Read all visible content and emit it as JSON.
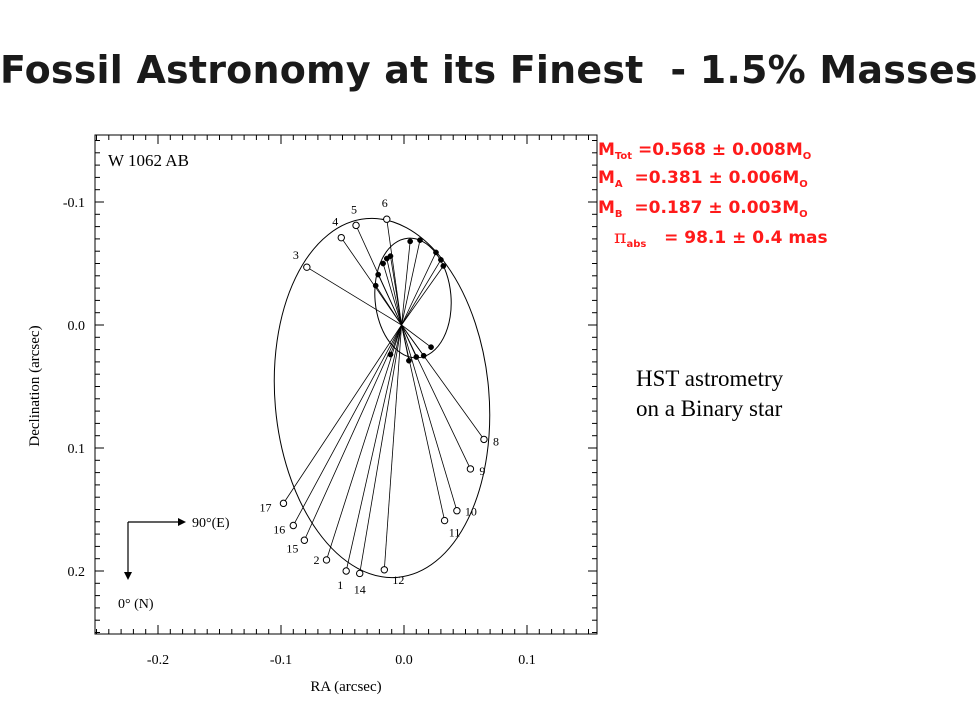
{
  "slide": {
    "title": "Fossil Astronomy at its Finest  - 1.5% Masses"
  },
  "results": {
    "m_tot_symbol": "M",
    "m_tot_sub": "Tot",
    "m_tot_value": " =0.568 ± 0.008M",
    "m_tot_unit_sub": "O",
    "m_a_symbol": "M",
    "m_a_sub": "A",
    "m_a_value": "  =0.381 ± 0.006M",
    "m_a_unit_sub": "O",
    "m_b_symbol": "M",
    "m_b_sub": "B",
    "m_b_value": "  =0.187 ± 0.003M",
    "m_b_unit_sub": "O",
    "pi_symbol": "π",
    "pi_sub": "abs",
    "pi_value": "   = 98.1 ± 0.4 mas"
  },
  "caption": {
    "line1": "HST astrometry",
    "line2": "on a Binary star"
  },
  "colors": {
    "annotation": "#ff1a1a",
    "ink": "#000000",
    "title": "#1a1a1a"
  },
  "chart_data": {
    "type": "scatter",
    "title": "W 1062 AB",
    "xlabel": "RA (arcsec)",
    "ylabel": "Declination (arcsec)",
    "xlim": [
      -0.25,
      0.15
    ],
    "ylim": [
      -0.15,
      0.25
    ],
    "y_inverted": true,
    "x_ticks": [
      -0.2,
      -0.1,
      0.0,
      0.1
    ],
    "x_tick_labels": [
      "-0.2",
      "-0.1",
      "0.0",
      "0.1"
    ],
    "y_ticks": [
      -0.1,
      0.0,
      0.1,
      0.2
    ],
    "y_tick_labels": [
      "-0.1",
      "0.0",
      "0.1",
      "0.2"
    ],
    "grid": false,
    "orbit_center_a": [
      -0.002,
      0.0
    ],
    "series": [
      {
        "marker": "open-circle",
        "points": [
          {
            "label": "1",
            "x": -0.047,
            "y": 0.2
          },
          {
            "label": "2",
            "x": -0.063,
            "y": 0.191
          },
          {
            "label": "3",
            "x": -0.079,
            "y": -0.047
          },
          {
            "label": "4",
            "x": -0.051,
            "y": -0.071
          },
          {
            "label": "5",
            "x": -0.039,
            "y": -0.081
          },
          {
            "label": "6",
            "x": -0.014,
            "y": -0.086
          },
          {
            "label": "8",
            "x": 0.065,
            "y": 0.093
          },
          {
            "label": "9",
            "x": 0.054,
            "y": 0.117
          },
          {
            "label": "10",
            "x": 0.043,
            "y": 0.151
          },
          {
            "label": "11",
            "x": 0.033,
            "y": 0.159
          },
          {
            "label": "12",
            "x": -0.016,
            "y": 0.199
          },
          {
            "label": "14",
            "x": -0.036,
            "y": 0.202
          },
          {
            "label": "15",
            "x": -0.081,
            "y": 0.175
          },
          {
            "label": "16",
            "x": -0.09,
            "y": 0.163
          },
          {
            "label": "17",
            "x": -0.098,
            "y": 0.145
          }
        ]
      },
      {
        "marker": "filled-dot",
        "points": [
          {
            "x": -0.023,
            "y": -0.032
          },
          {
            "x": -0.021,
            "y": -0.041
          },
          {
            "x": -0.017,
            "y": -0.05
          },
          {
            "x": -0.014,
            "y": -0.054
          },
          {
            "x": -0.011,
            "y": -0.056
          },
          {
            "x": 0.005,
            "y": -0.068
          },
          {
            "x": 0.013,
            "y": -0.069
          },
          {
            "x": 0.026,
            "y": -0.059
          },
          {
            "x": 0.03,
            "y": -0.053
          },
          {
            "x": 0.032,
            "y": -0.048
          },
          {
            "x": 0.022,
            "y": 0.018
          },
          {
            "x": 0.016,
            "y": 0.025
          },
          {
            "x": 0.01,
            "y": 0.026
          },
          {
            "x": 0.004,
            "y": 0.029
          },
          {
            "x": -0.011,
            "y": 0.024
          }
        ]
      }
    ],
    "compass": {
      "east_label": "90°(E)",
      "north_label": "0° (N)"
    }
  }
}
